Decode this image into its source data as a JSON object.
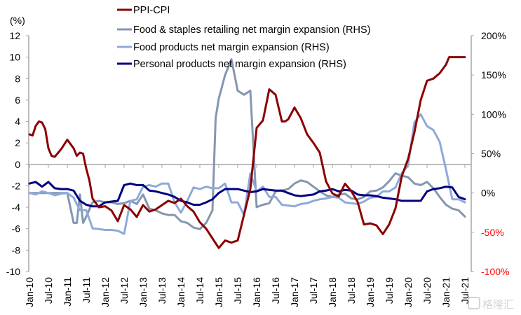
{
  "chart_data": {
    "type": "line",
    "title": "",
    "left_axis": {
      "label": "(%)",
      "ylim": [
        -10,
        12
      ],
      "ticks": [
        12,
        10,
        8,
        6,
        4,
        2,
        0,
        -2,
        -4,
        -6,
        -8,
        -10
      ],
      "tick_labels": [
        "12",
        "10",
        "8",
        "6",
        "4",
        "2",
        "0",
        "-2",
        "-4",
        "-6",
        "-8",
        "-10"
      ]
    },
    "right_axis": {
      "label": "",
      "ylim": [
        -100,
        200
      ],
      "ticks": [
        200,
        150,
        100,
        50,
        0,
        -50,
        -100
      ],
      "tick_labels": [
        "200%",
        "150%",
        "100%",
        "50%",
        "0%",
        "-50%",
        "-100%"
      ],
      "tick_colors": [
        "#000000",
        "#000000",
        "#000000",
        "#000000",
        "#000000",
        "#ff0000",
        "#ff0000"
      ]
    },
    "x_axis": {
      "tick_labels": [
        "Jan-10",
        "Jul-10",
        "Jan-11",
        "Jul-11",
        "Jan-12",
        "Jul-12",
        "Jan-13",
        "Jul-13",
        "Jan-14",
        "Jul-14",
        "Jan-15",
        "Jul-15",
        "Jan-16",
        "Jul-16",
        "Jan-17",
        "Jul-17",
        "Jan-18",
        "Jul-18",
        "Jan-19",
        "Jul-19",
        "Jan-20",
        "Jul-20",
        "Jan-21",
        "Jul-21"
      ],
      "start_month_index": 0,
      "end_month_index": 138
    },
    "legend": {
      "position": "top-center"
    },
    "grid": false,
    "series": [
      {
        "name": "PPI-CPI",
        "axis": "left",
        "color": "#8b0000",
        "months": [
          0,
          1,
          2,
          3,
          4,
          5,
          6,
          7,
          8,
          10,
          12,
          14,
          15,
          16,
          17,
          18,
          19,
          20,
          22,
          24,
          26,
          28,
          30,
          32,
          34,
          36,
          38,
          40,
          42,
          44,
          46,
          48,
          50,
          52,
          54,
          56,
          58,
          60,
          62,
          64,
          66,
          68,
          70,
          72,
          74,
          76,
          78,
          80,
          81,
          82,
          84,
          86,
          88,
          90,
          92,
          94,
          96,
          98,
          100,
          102,
          104,
          106,
          108,
          110,
          112,
          114,
          116,
          118,
          120,
          122,
          124,
          126,
          128,
          130,
          132,
          133,
          134,
          136,
          138
        ],
        "values": [
          2.8,
          2.7,
          3.6,
          4.0,
          3.9,
          3.3,
          1.5,
          0.8,
          0.7,
          1.4,
          2.3,
          1.5,
          0.8,
          1.1,
          1.0,
          -0.4,
          -1.5,
          -3.2,
          -4.0,
          -3.9,
          -4.3,
          -5.3,
          -3.8,
          -4.2,
          -4.9,
          -3.8,
          -4.4,
          -4.2,
          -3.8,
          -3.4,
          -3.6,
          -3.2,
          -3.9,
          -4.4,
          -5.4,
          -6.0,
          -6.9,
          -7.8,
          -7.1,
          -7.3,
          -7.1,
          -4.7,
          -2.3,
          3.4,
          4.1,
          7.0,
          6.5,
          4.0,
          4.0,
          4.2,
          5.3,
          4.3,
          2.8,
          2.0,
          1.1,
          -1.6,
          -2.7,
          -3.0,
          -1.8,
          -2.5,
          -3.5,
          -5.6,
          -5.5,
          -5.7,
          -6.5,
          -5.6,
          -4.1,
          -1.1,
          0.5,
          3.0,
          6.0,
          7.8,
          8.0,
          8.5,
          9.3,
          10.0,
          10.0,
          10.0,
          10.0
        ]
      },
      {
        "name": "Food & staples retailing net margin expansion (RHS)",
        "axis": "right",
        "color": "#8497b0",
        "months": [
          0,
          4,
          8,
          12,
          14,
          15,
          16,
          17,
          18,
          20,
          22,
          24,
          26,
          28,
          30,
          32,
          34,
          36,
          38,
          40,
          42,
          44,
          46,
          48,
          50,
          52,
          54,
          56,
          58,
          59,
          60,
          62,
          64,
          66,
          68,
          70,
          72,
          74,
          76,
          78,
          80,
          82,
          84,
          86,
          88,
          90,
          92,
          94,
          96,
          98,
          100,
          102,
          104,
          106,
          108,
          110,
          112,
          114,
          116,
          118,
          120,
          122,
          124,
          126,
          128,
          130,
          132,
          134,
          136,
          138
        ],
        "values": [
          0,
          0,
          0,
          0,
          -38,
          -38,
          -2,
          -38,
          -30,
          -12,
          -10,
          -12,
          -12,
          -14,
          -13,
          -10,
          -14,
          -2,
          -20,
          -22,
          -26,
          -28,
          -28,
          -36,
          -38,
          -44,
          -46,
          -38,
          -22,
          95,
          120,
          150,
          170,
          130,
          125,
          130,
          -18,
          -15,
          -13,
          2,
          3,
          5,
          12,
          16,
          14,
          8,
          2,
          -3,
          -5,
          -2,
          -1,
          -7,
          -8,
          -5,
          2,
          3,
          7,
          15,
          25,
          22,
          20,
          12,
          10,
          14,
          6,
          -5,
          -15,
          -20,
          -22,
          -30
        ]
      },
      {
        "name": "Food products net margin expansion (RHS)",
        "axis": "right",
        "color": "#8eaadb",
        "months": [
          0,
          2,
          4,
          6,
          8,
          10,
          12,
          14,
          16,
          18,
          20,
          22,
          24,
          26,
          28,
          30,
          32,
          34,
          36,
          38,
          40,
          42,
          44,
          46,
          48,
          50,
          52,
          54,
          56,
          58,
          60,
          62,
          64,
          66,
          68,
          70,
          72,
          74,
          76,
          78,
          80,
          82,
          84,
          86,
          88,
          90,
          92,
          94,
          96,
          98,
          100,
          102,
          104,
          106,
          108,
          110,
          112,
          114,
          116,
          118,
          120,
          122,
          124,
          126,
          128,
          130,
          132,
          134,
          136,
          138
        ],
        "values": [
          0,
          -2,
          2,
          0,
          -3,
          -1,
          0,
          -6,
          -22,
          -22,
          -45,
          -46,
          -47,
          -47,
          -48,
          -52,
          -10,
          -8,
          8,
          10,
          8,
          12,
          12,
          -12,
          -25,
          -10,
          7,
          5,
          8,
          6,
          6,
          12,
          -12,
          -12,
          -28,
          25,
          2,
          8,
          -5,
          -5,
          -15,
          -16,
          -17,
          -14,
          -13,
          -10,
          -8,
          -7,
          -5,
          -6,
          -12,
          -13,
          -14,
          -11,
          -6,
          -5,
          2,
          2,
          7,
          25,
          35,
          90,
          100,
          85,
          80,
          65,
          30,
          -8,
          -8,
          -12
        ]
      },
      {
        "name": "Personal products net margin expansion (RHS)",
        "axis": "right",
        "color": "#00007f",
        "months": [
          0,
          2,
          4,
          6,
          8,
          10,
          12,
          14,
          16,
          18,
          20,
          22,
          24,
          26,
          28,
          30,
          32,
          34,
          36,
          38,
          40,
          42,
          44,
          46,
          48,
          50,
          52,
          54,
          56,
          58,
          60,
          62,
          64,
          66,
          68,
          70,
          72,
          74,
          76,
          78,
          80,
          82,
          84,
          86,
          88,
          90,
          92,
          94,
          96,
          98,
          100,
          102,
          104,
          106,
          108,
          110,
          112,
          114,
          116,
          118,
          120,
          122,
          124,
          126,
          128,
          130,
          132,
          134,
          136,
          138
        ],
        "values": [
          12,
          14,
          8,
          14,
          6,
          5,
          5,
          3,
          -10,
          -15,
          -17,
          -17,
          -12,
          -11,
          -10,
          10,
          12,
          10,
          10,
          3,
          2,
          0,
          -2,
          -5,
          -10,
          -12,
          -15,
          -15,
          -12,
          -8,
          0,
          5,
          5,
          5,
          3,
          1,
          2,
          5,
          4,
          3,
          3,
          0,
          -3,
          -4,
          -3,
          -2,
          2,
          3,
          5,
          2,
          4,
          3,
          -2,
          -3,
          -3,
          -4,
          -6,
          -7,
          -8,
          -10,
          -10,
          -10,
          -10,
          2,
          5,
          6,
          8,
          7,
          -5,
          -8
        ]
      }
    ]
  },
  "watermark": "格隆汇"
}
